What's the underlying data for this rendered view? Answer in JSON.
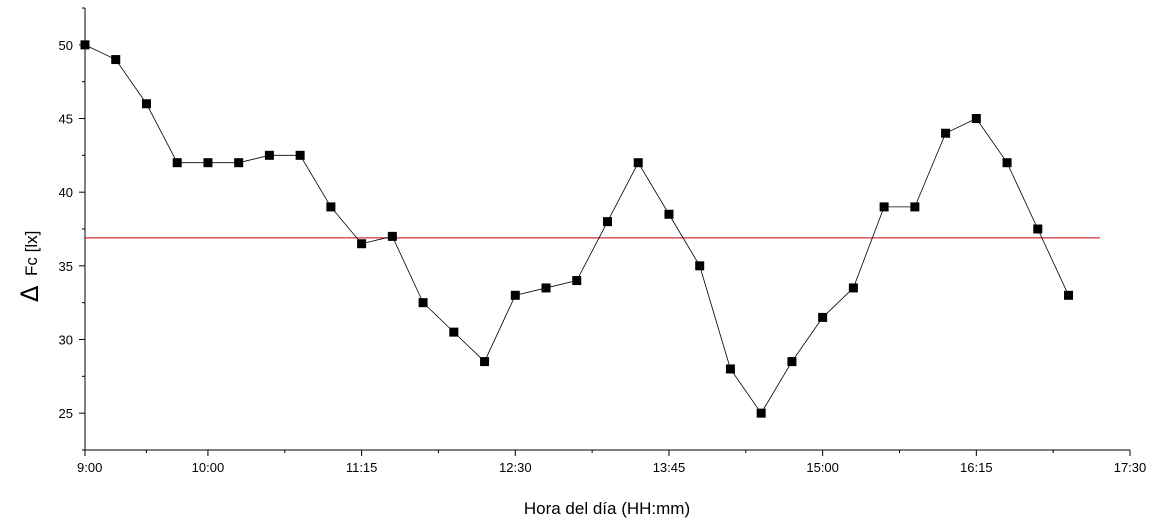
{
  "chart_data": {
    "type": "line",
    "title": "",
    "xlabel": "Hora del día (HH:mm)",
    "ylabel_symbol": "Δ",
    "ylabel": "Fc [lx]",
    "x_ticks": [
      "9:00",
      "10:00",
      "11:15",
      "12:30",
      "13:45",
      "15:00",
      "16:15",
      "17:30"
    ],
    "xlim": [
      "9:00",
      "17:30"
    ],
    "y_ticks": [
      25,
      30,
      35,
      40,
      45,
      50
    ],
    "ylim": [
      22.5,
      52.5
    ],
    "grid": false,
    "series": [
      {
        "color": "#000000",
        "marker": "square",
        "x": [
          "9:00",
          "9:15",
          "9:30",
          "9:45",
          "10:00",
          "10:15",
          "10:30",
          "10:45",
          "11:00",
          "11:15",
          "11:30",
          "11:45",
          "12:00",
          "12:15",
          "12:30",
          "12:45",
          "13:00",
          "13:15",
          "13:30",
          "13:45",
          "14:00",
          "14:15",
          "14:30",
          "14:45",
          "15:00",
          "15:15",
          "15:30",
          "15:45",
          "16:00",
          "16:15",
          "16:30",
          "16:45",
          "17:00"
        ],
        "values": [
          50,
          49,
          46,
          42,
          42,
          42,
          42.5,
          42.5,
          39,
          36.5,
          37,
          32.5,
          30.5,
          28.5,
          33,
          33.5,
          34,
          38,
          42,
          38.5,
          35,
          28,
          25,
          28.5,
          31.5,
          33.5,
          39,
          39,
          44,
          45,
          42,
          37.5,
          33
        ]
      }
    ],
    "reference_line": {
      "y": 36.9,
      "color": "#c00000"
    }
  }
}
